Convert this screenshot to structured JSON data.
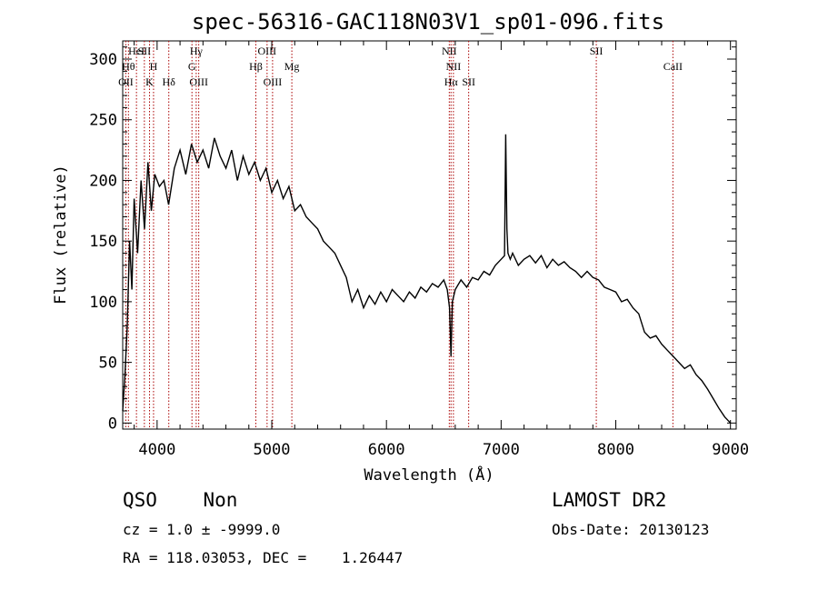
{
  "chart_data": {
    "type": "line",
    "title": "spec-56316-GAC118N03V1_sp01-096.fits",
    "xlabel": "Wavelength (Å)",
    "ylabel": "Flux (relative)",
    "xlim": [
      3700,
      9050
    ],
    "ylim": [
      -5,
      315
    ],
    "x_ticks": [
      4000,
      5000,
      6000,
      7000,
      8000,
      9000
    ],
    "y_ticks": [
      0,
      50,
      100,
      150,
      200,
      250,
      300
    ],
    "grid": false,
    "line_color": "#000000",
    "marker_color": "#aa0000",
    "series": [
      {
        "x": [
          3700,
          3720,
          3740,
          3760,
          3780,
          3800,
          3830,
          3860,
          3890,
          3920,
          3950,
          3980,
          4020,
          4060,
          4100,
          4150,
          4200,
          4250,
          4300,
          4350,
          4400,
          4450,
          4500,
          4550,
          4600,
          4650,
          4700,
          4750,
          4800,
          4850,
          4900,
          4950,
          5000,
          5050,
          5100,
          5150,
          5200,
          5250,
          5300,
          5350,
          5400,
          5450,
          5500,
          5550,
          5600,
          5650,
          5700,
          5750,
          5800,
          5850,
          5900,
          5950,
          6000,
          6050,
          6100,
          6150,
          6200,
          6250,
          6300,
          6350,
          6400,
          6450,
          6500,
          6530,
          6550,
          6563,
          6575,
          6600,
          6650,
          6700,
          6750,
          6800,
          6850,
          6900,
          6950,
          7000,
          7030,
          7040,
          7050,
          7060,
          7080,
          7100,
          7150,
          7200,
          7250,
          7300,
          7350,
          7400,
          7450,
          7500,
          7550,
          7600,
          7650,
          7700,
          7750,
          7800,
          7850,
          7900,
          7950,
          8000,
          8050,
          8100,
          8150,
          8200,
          8250,
          8300,
          8350,
          8400,
          8450,
          8500,
          8550,
          8600,
          8650,
          8700,
          8750,
          8800,
          8850,
          8900,
          8950,
          9000
        ],
        "y": [
          10,
          40,
          80,
          150,
          110,
          185,
          140,
          200,
          160,
          215,
          175,
          205,
          195,
          200,
          180,
          210,
          225,
          205,
          230,
          215,
          225,
          210,
          235,
          220,
          210,
          225,
          200,
          220,
          205,
          215,
          200,
          210,
          190,
          200,
          185,
          195,
          175,
          180,
          170,
          165,
          160,
          150,
          145,
          140,
          130,
          120,
          100,
          110,
          95,
          105,
          98,
          108,
          100,
          110,
          105,
          100,
          108,
          103,
          112,
          108,
          115,
          112,
          118,
          110,
          95,
          55,
          100,
          110,
          118,
          112,
          120,
          118,
          125,
          122,
          130,
          135,
          138,
          238,
          160,
          140,
          135,
          140,
          130,
          135,
          138,
          132,
          138,
          128,
          135,
          130,
          133,
          128,
          125,
          120,
          125,
          120,
          118,
          112,
          110,
          108,
          100,
          102,
          95,
          90,
          75,
          70,
          72,
          65,
          60,
          55,
          50,
          45,
          48,
          40,
          35,
          28,
          20,
          12,
          5,
          0
        ]
      }
    ],
    "line_markers": [
      {
        "wave": 3727,
        "labels": [
          "OII"
        ],
        "rows": [
          3
        ]
      },
      {
        "wave": 3750,
        "labels": [
          "Hθ"
        ],
        "rows": [
          1
        ]
      },
      {
        "wave": 3820,
        "labels": [
          "HeI"
        ],
        "rows": [
          0
        ]
      },
      {
        "wave": 3889,
        "labels": [
          "SII"
        ],
        "rows": [
          0
        ]
      },
      {
        "wave": 3934,
        "labels": [
          "K"
        ],
        "rows": [
          3
        ]
      },
      {
        "wave": 3969,
        "labels": [
          "H"
        ],
        "rows": [
          1
        ]
      },
      {
        "wave": 4102,
        "labels": [
          "Hδ"
        ],
        "rows": [
          3
        ]
      },
      {
        "wave": 4304,
        "labels": [
          "G"
        ],
        "rows": [
          1
        ]
      },
      {
        "wave": 4341,
        "labels": [
          "Hγ"
        ],
        "rows": [
          0
        ]
      },
      {
        "wave": 4363,
        "labels": [
          "OIII"
        ],
        "rows": [
          3
        ]
      },
      {
        "wave": 4861,
        "labels": [
          "Hβ"
        ],
        "rows": [
          1
        ]
      },
      {
        "wave": 4959,
        "labels": [
          "OIII"
        ],
        "rows": [
          0
        ]
      },
      {
        "wave": 5007,
        "labels": [
          "OIII"
        ],
        "rows": [
          3
        ]
      },
      {
        "wave": 5175,
        "labels": [
          "Mg"
        ],
        "rows": [
          1
        ]
      },
      {
        "wave": 6548,
        "labels": [
          "NII"
        ],
        "rows": [
          0
        ]
      },
      {
        "wave": 6563,
        "labels": [
          "Hα"
        ],
        "rows": [
          3
        ]
      },
      {
        "wave": 6584,
        "labels": [
          "NII"
        ],
        "rows": [
          1
        ]
      },
      {
        "wave": 6717,
        "labels": [
          "SII"
        ],
        "rows": [
          3
        ]
      },
      {
        "wave": 7830,
        "labels": [
          "SII"
        ],
        "rows": [
          0
        ]
      },
      {
        "wave": 8498,
        "labels": [
          "CaII"
        ],
        "rows": [
          1
        ]
      }
    ]
  },
  "footer": {
    "class_text": "QSO    Non",
    "survey": "LAMOST DR2",
    "cz_text": "cz = 1.0 ± -9999.0",
    "obs_date": "Obs-Date: 20130123",
    "coords_text": "RA = 118.03053, DEC =    1.26447"
  }
}
